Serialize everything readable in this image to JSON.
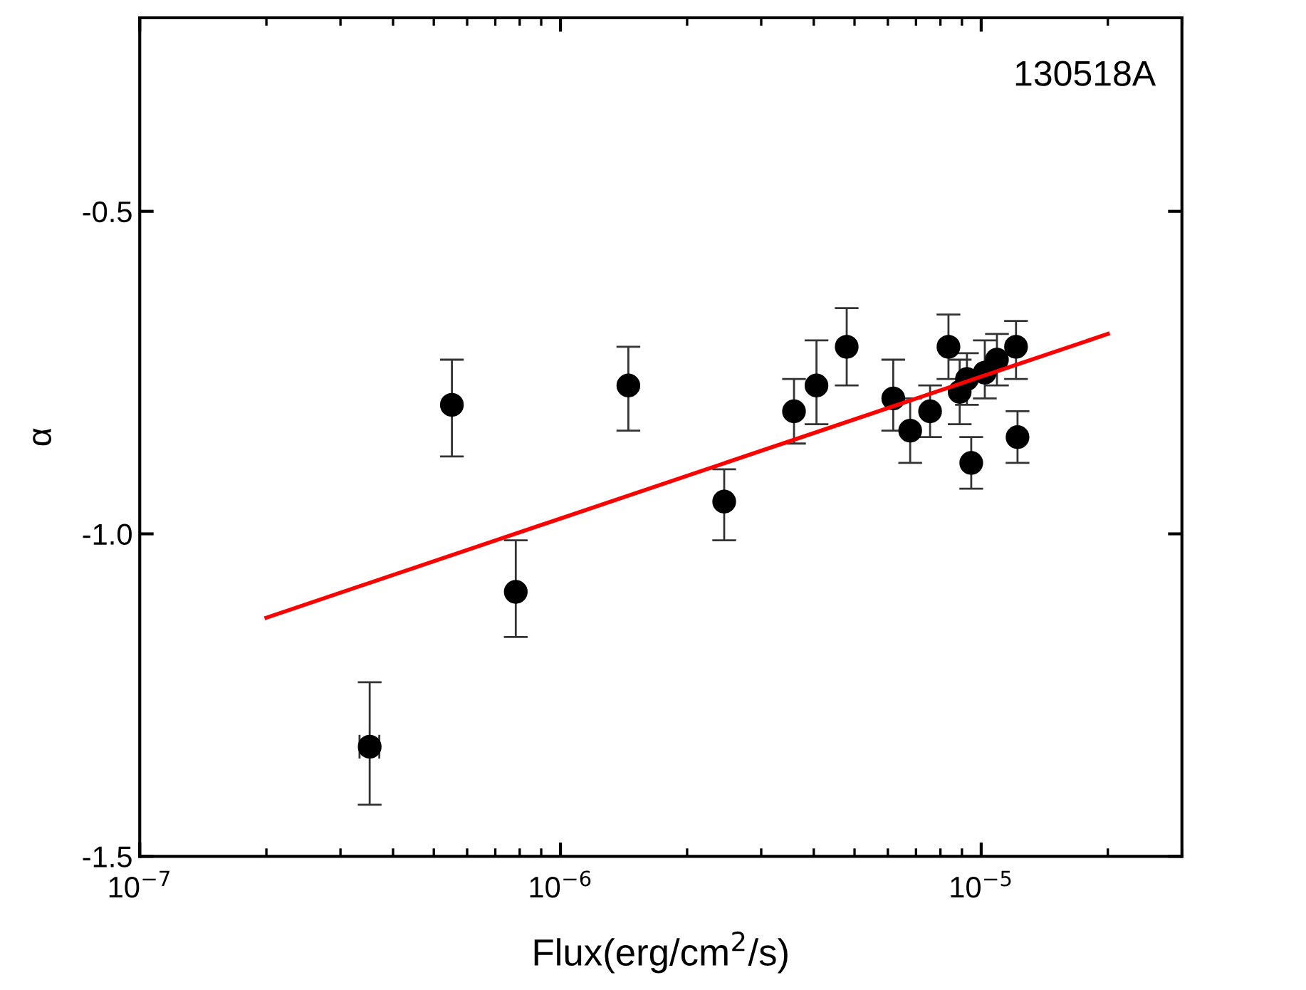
{
  "chart_data": {
    "type": "scatter",
    "xlabel": "Flux(erg/cm$^{2}$/s)",
    "ylabel": "α",
    "log": "x",
    "xlim": [
      1e-07,
      3e-05
    ],
    "ylim": [
      -1.5,
      -0.2
    ],
    "xticks": [
      {
        "value": 1e-07,
        "label": "10$^{−7}$"
      },
      {
        "value": 1e-06,
        "label": "10$^{−6}$"
      },
      {
        "value": 1e-05,
        "label": "10$^{−5}$"
      }
    ],
    "yticks": [
      {
        "value": -1.5,
        "label": "-1.5"
      },
      {
        "value": -1.0,
        "label": "-1.0"
      },
      {
        "value": -0.5,
        "label": "-0.5"
      }
    ],
    "grid": false,
    "marker": "circle",
    "annotations": [
      "130518A"
    ],
    "series": [
      {
        "color": "#000000",
        "x": [
          3.52e-07,
          5.52e-07,
          7.83e-07,
          1.45e-06,
          2.45e-06,
          3.59e-06,
          4.06e-06,
          4.79e-06,
          6.18e-06,
          6.78e-06,
          7.56e-06,
          8.36e-06,
          8.89e-06,
          9.25e-06,
          9.47e-06,
          1.02e-05,
          1.09e-05,
          1.21e-05,
          1.22e-05
        ],
        "values": [
          -1.33,
          -0.8,
          -1.09,
          -0.77,
          -0.95,
          -0.81,
          -0.77,
          -0.71,
          -0.79,
          -0.84,
          -0.81,
          -0.71,
          -0.78,
          -0.76,
          -0.89,
          -0.75,
          -0.73,
          -0.71,
          -0.85
        ],
        "errors": [
          [
            -1.42,
            -1.23
          ],
          [
            -0.88,
            -0.73
          ],
          [
            -1.16,
            -1.01
          ],
          [
            -0.84,
            -0.71
          ],
          [
            -1.01,
            -0.9
          ],
          [
            -0.86,
            -0.76
          ],
          [
            -0.83,
            -0.7
          ],
          [
            -0.77,
            -0.65
          ],
          [
            -0.84,
            -0.73
          ],
          [
            -0.89,
            -0.79
          ],
          [
            -0.85,
            -0.77
          ],
          [
            -0.76,
            -0.66
          ],
          [
            -0.83,
            -0.73
          ],
          [
            -0.8,
            -0.72
          ],
          [
            -0.93,
            -0.85
          ],
          [
            -0.79,
            -0.7
          ],
          [
            -0.77,
            -0.69
          ],
          [
            -0.76,
            -0.67
          ],
          [
            -0.89,
            -0.81
          ]
        ],
        "xerrors": [
          [
            3.33e-07,
            3.71e-07
          ],
          null,
          null,
          null,
          null,
          null,
          null,
          null,
          null,
          null,
          null,
          null,
          null,
          null,
          null,
          null,
          null,
          null,
          null
        ]
      },
      {
        "type": "line",
        "color": "#ff0000",
        "marker": "none",
        "line_style": "solid",
        "x": [
          2e-07,
          2e-05
        ],
        "values": [
          -1.13,
          -0.69
        ]
      }
    ]
  }
}
